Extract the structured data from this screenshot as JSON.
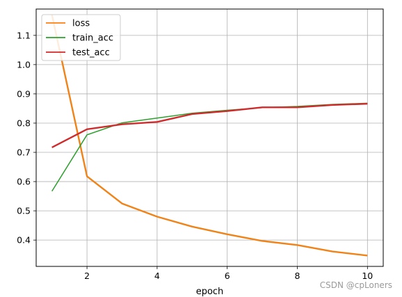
{
  "chart_data": {
    "type": "line",
    "xlabel": "epoch",
    "ylabel": "",
    "title": "",
    "x": [
      1,
      2,
      3,
      4,
      5,
      6,
      7,
      8,
      9,
      10
    ],
    "xlim": [
      0.55,
      10.45
    ],
    "ylim": [
      0.31,
      1.19
    ],
    "xticks": [
      "2",
      "4",
      "6",
      "8",
      "10"
    ],
    "yticks": [
      "0.4",
      "0.5",
      "0.6",
      "0.7",
      "0.8",
      "0.9",
      "1.0",
      "1.1"
    ],
    "grid": true,
    "legend": "top-left",
    "series": [
      {
        "name": "loss",
        "color": "#ff7f0e",
        "edge_color": "#d28a2a",
        "values": [
          1.17,
          0.618,
          0.525,
          0.48,
          0.446,
          0.42,
          0.397,
          0.383,
          0.361,
          0.347
        ]
      },
      {
        "name": "train_acc",
        "color": "#2ca02c",
        "values": [
          0.567,
          0.76,
          0.801,
          0.817,
          0.834,
          0.844,
          0.853,
          0.857,
          0.864,
          0.868
        ]
      },
      {
        "name": "test_acc",
        "color": "#d62728",
        "edge_color": "#c0393b",
        "values": [
          0.717,
          0.779,
          0.796,
          0.804,
          0.831,
          0.841,
          0.854,
          0.854,
          0.862,
          0.866
        ]
      }
    ]
  },
  "watermark": "CSDN @cpLoners"
}
